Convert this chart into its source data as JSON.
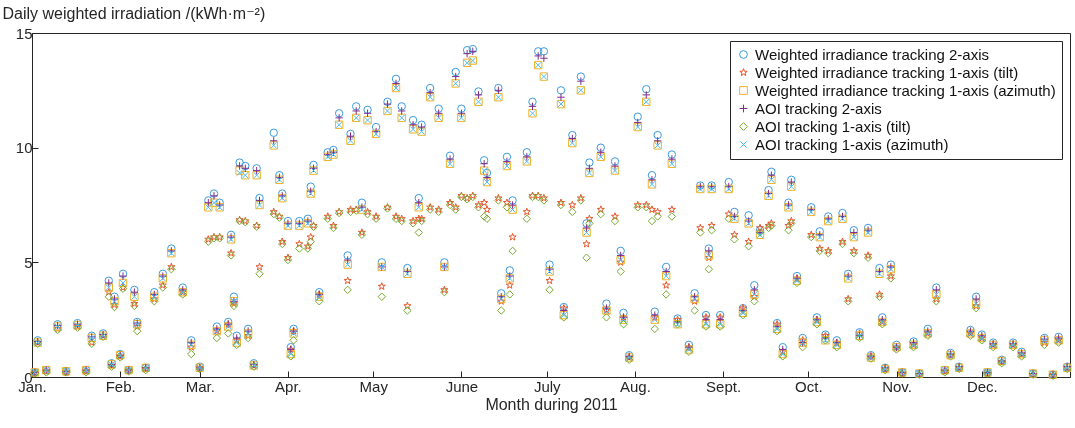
{
  "chart_data": {
    "type": "scatter",
    "xlabel": "Month during 2011",
    "ylabel": "Daily weighted irradiation /(kWh·m⁻²)",
    "xlim": [
      "2011-01-01",
      "2012-01-01"
    ],
    "xticks": [
      {
        "value": "2011-01-01",
        "label": "Jan."
      },
      {
        "value": "2011-02-01",
        "label": "Feb."
      },
      {
        "value": "2011-03-01",
        "label": "Mar."
      },
      {
        "value": "2011-04-01",
        "label": "Apr."
      },
      {
        "value": "2011-05-01",
        "label": "May"
      },
      {
        "value": "2011-06-01",
        "label": "June"
      },
      {
        "value": "2011-07-01",
        "label": "July"
      },
      {
        "value": "2011-08-01",
        "label": "Aug."
      },
      {
        "value": "2011-09-01",
        "label": "Sept."
      },
      {
        "value": "2011-10-01",
        "label": "Oct."
      },
      {
        "value": "2011-11-01",
        "label": "Nov."
      },
      {
        "value": "2011-12-01",
        "label": "Dec."
      }
    ],
    "ylim": [
      0,
      15
    ],
    "yticks": [
      0,
      5,
      10,
      15
    ],
    "grid": false,
    "legend": "top right",
    "x": [
      "2011-01-02",
      "2011-01-03",
      "2011-01-06",
      "2011-01-10",
      "2011-01-13",
      "2011-01-17",
      "2011-01-20",
      "2011-01-22",
      "2011-01-26",
      "2011-01-28",
      "2011-01-29",
      "2011-01-30",
      "2011-02-01",
      "2011-02-02",
      "2011-02-04",
      "2011-02-06",
      "2011-02-07",
      "2011-02-10",
      "2011-02-13",
      "2011-02-16",
      "2011-02-19",
      "2011-02-23",
      "2011-02-26",
      "2011-03-01",
      "2011-03-04",
      "2011-03-06",
      "2011-03-07",
      "2011-03-08",
      "2011-03-11",
      "2011-03-12",
      "2011-03-13",
      "2011-03-14",
      "2011-03-15",
      "2011-03-17",
      "2011-03-18",
      "2011-03-20",
      "2011-03-21",
      "2011-03-22",
      "2011-03-27",
      "2011-03-29",
      "2011-03-30",
      "2011-04-01",
      "2011-04-02",
      "2011-04-03",
      "2011-04-05",
      "2011-04-08",
      "2011-04-09",
      "2011-04-10",
      "2011-04-12",
      "2011-04-15",
      "2011-04-17",
      "2011-04-19",
      "2011-04-22",
      "2011-04-23",
      "2011-04-25",
      "2011-04-27",
      "2011-04-29",
      "2011-05-02",
      "2011-05-04",
      "2011-05-06",
      "2011-05-09",
      "2011-05-11",
      "2011-05-13",
      "2011-05-15",
      "2011-05-17",
      "2011-05-18",
      "2011-05-21",
      "2011-05-24",
      "2011-05-26",
      "2011-05-28",
      "2011-05-30",
      "2011-06-01",
      "2011-06-03",
      "2011-06-05",
      "2011-06-07",
      "2011-06-09",
      "2011-06-10",
      "2011-06-14",
      "2011-06-15",
      "2011-06-17",
      "2011-06-18",
      "2011-06-19",
      "2011-06-24",
      "2011-06-26",
      "2011-06-28",
      "2011-06-30",
      "2011-07-02",
      "2011-07-06",
      "2011-07-07",
      "2011-07-10",
      "2011-07-13",
      "2011-07-15",
      "2011-07-16",
      "2011-07-20",
      "2011-07-22",
      "2011-07-25",
      "2011-07-27",
      "2011-07-28",
      "2011-07-30",
      "2011-08-02",
      "2011-08-05",
      "2011-08-07",
      "2011-08-08",
      "2011-08-09",
      "2011-08-12",
      "2011-08-14",
      "2011-08-16",
      "2011-08-20",
      "2011-08-22",
      "2011-08-24",
      "2011-08-26",
      "2011-08-27",
      "2011-08-28",
      "2011-08-31",
      "2011-09-03",
      "2011-09-05",
      "2011-09-08",
      "2011-09-10",
      "2011-09-12",
      "2011-09-14",
      "2011-09-17",
      "2011-09-18",
      "2011-09-20",
      "2011-09-22",
      "2011-09-24",
      "2011-09-25",
      "2011-09-27",
      "2011-09-29",
      "2011-10-02",
      "2011-10-04",
      "2011-10-05",
      "2011-10-07",
      "2011-10-08",
      "2011-10-11",
      "2011-10-13",
      "2011-10-15",
      "2011-10-17",
      "2011-10-19",
      "2011-10-22",
      "2011-10-23",
      "2011-10-26",
      "2011-10-27",
      "2011-10-28",
      "2011-10-30",
      "2011-11-01",
      "2011-11-03",
      "2011-11-07",
      "2011-11-09",
      "2011-11-12",
      "2011-11-15",
      "2011-11-18",
      "2011-11-20",
      "2011-11-23",
      "2011-11-27",
      "2011-11-29",
      "2011-12-01",
      "2011-12-03",
      "2011-12-05",
      "2011-12-08",
      "2011-12-12",
      "2011-12-15",
      "2011-12-19",
      "2011-12-23",
      "2011-12-26",
      "2011-12-28",
      "2011-12-31"
    ],
    "series": [
      {
        "name": "Weighted irradiance tracking 2-axis",
        "color": "#3b9ade",
        "marker": "circle",
        "values": [
          0.2,
          1.6,
          0.3,
          2.3,
          0.25,
          2.35,
          0.3,
          1.8,
          1.9,
          4.2,
          0.6,
          3.5,
          1.0,
          4.5,
          0.3,
          3.8,
          2.4,
          0.4,
          3.7,
          4.5,
          5.6,
          3.9,
          1.6,
          0.45,
          7.7,
          8.0,
          2.2,
          7.6,
          2.4,
          6.2,
          3.5,
          1.8,
          9.35,
          9.2,
          2.1,
          0.6,
          9.1,
          7.8,
          10.65,
          8.8,
          8.0,
          6.8,
          1.3,
          2.1,
          6.8,
          6.9,
          8.3,
          9.25,
          3.7,
          9.8,
          9.9,
          11.5,
          5.3,
          10.6,
          11.8,
          7.6,
          11.65,
          10.9,
          5.0,
          12.0,
          13.0,
          11.8,
          4.75,
          11.2,
          7.8,
          11.0,
          12.6,
          11.7,
          5.0,
          9.65,
          13.3,
          11.7,
          14.25,
          14.3,
          12.45,
          9.45,
          8.9,
          12.6,
          3.65,
          9.6,
          4.65,
          7.7,
          9.8,
          12.0,
          14.2,
          14.2,
          4.9,
          12.5,
          3.05,
          10.55,
          13.1,
          6.7,
          9.35,
          10.0,
          3.2,
          9.4,
          5.5,
          2.8,
          0.95,
          11.35,
          12.55,
          8.8,
          2.85,
          10.55,
          4.8,
          9.7,
          2.55,
          1.4,
          3.65,
          8.35,
          2.7,
          5.6,
          8.35,
          2.7,
          8.5,
          7.2,
          3.0,
          7.05,
          4.0,
          6.4,
          8.15,
          8.95,
          2.35,
          1.3,
          7.6,
          8.6,
          4.4,
          1.7,
          7.4,
          2.6,
          6.35,
          1.85,
          7.0,
          1.6,
          7.15,
          4.5,
          6.4,
          1.95,
          6.5,
          0.95,
          4.75,
          2.6,
          0.4,
          4.9,
          1.4,
          0.2,
          1.55,
          0.15,
          2.1,
          3.9,
          0.3,
          1.05,
          0.45,
          2.05,
          3.5,
          1.85,
          0.2,
          1.5,
          0.75,
          1.5,
          1.1,
          0.15,
          1.7,
          0.1,
          1.75,
          0.45
        ]
      },
      {
        "name": "Weighted irradiance tracking 1-axis (tilt)",
        "color": "#e8562a",
        "marker": "star",
        "values": [
          0.2,
          1.5,
          0.25,
          2.1,
          0.2,
          2.2,
          0.25,
          1.5,
          1.8,
          3.7,
          0.5,
          3.15,
          0.9,
          3.9,
          0.3,
          3.2,
          2.2,
          0.35,
          3.4,
          4.0,
          4.8,
          3.7,
          1.3,
          0.4,
          6.0,
          6.1,
          2.0,
          6.1,
          2.3,
          5.4,
          3.2,
          1.6,
          6.85,
          6.8,
          1.8,
          0.5,
          6.6,
          4.8,
          7.2,
          7.0,
          5.9,
          5.2,
          1.2,
          2.0,
          5.8,
          5.7,
          6.1,
          6.6,
          3.6,
          7.0,
          6.6,
          7.2,
          4.2,
          7.3,
          7.3,
          6.3,
          7.2,
          7.0,
          3.95,
          7.4,
          7.0,
          6.9,
          3.1,
          6.8,
          6.9,
          6.9,
          7.4,
          7.3,
          3.8,
          7.6,
          7.4,
          7.9,
          7.8,
          7.9,
          7.5,
          7.6,
          7.3,
          7.8,
          3.3,
          7.6,
          4.0,
          6.1,
          7.2,
          7.9,
          7.9,
          7.8,
          4.2,
          7.6,
          3.0,
          7.5,
          7.8,
          5.8,
          6.9,
          7.3,
          2.9,
          7.0,
          5.0,
          2.6,
          0.85,
          7.5,
          7.5,
          7.3,
          2.6,
          7.2,
          4.0,
          7.3,
          2.5,
          1.3,
          3.3,
          6.5,
          2.6,
          5.2,
          6.6,
          2.6,
          7.1,
          6.2,
          3.0,
          5.9,
          3.5,
          6.5,
          6.6,
          6.7,
          2.3,
          1.1,
          6.6,
          6.8,
          4.3,
          1.6,
          6.2,
          2.5,
          5.6,
          1.8,
          5.5,
          1.5,
          5.9,
          3.4,
          5.5,
          1.9,
          5.3,
          0.9,
          3.6,
          2.4,
          0.35,
          4.4,
          1.3,
          0.15,
          1.4,
          0.1,
          1.9,
          3.4,
          0.25,
          0.95,
          0.4,
          1.9,
          3.1,
          1.7,
          0.15,
          1.4,
          0.65,
          1.4,
          1.0,
          0.1,
          1.5,
          0.1,
          1.6,
          0.4
        ]
      },
      {
        "name": "Weighted irradiance tracking 1-axis (azimuth)",
        "color": "#f0b429",
        "marker": "square",
        "values": [
          0.2,
          1.5,
          0.3,
          2.2,
          0.25,
          2.25,
          0.3,
          1.7,
          1.8,
          3.9,
          0.55,
          3.3,
          0.95,
          4.1,
          0.3,
          3.5,
          2.3,
          0.4,
          3.5,
          4.3,
          5.4,
          3.7,
          1.4,
          0.4,
          7.4,
          7.6,
          2.0,
          7.4,
          2.2,
          6.0,
          3.3,
          1.5,
          9.0,
          8.8,
          1.9,
          0.5,
          8.8,
          7.5,
          10.1,
          8.6,
          7.8,
          6.6,
          1.0,
          1.9,
          6.6,
          6.7,
          8.0,
          9.0,
          3.5,
          9.6,
          9.7,
          11.0,
          4.9,
          10.3,
          11.3,
          7.3,
          11.2,
          10.6,
          4.8,
          11.6,
          12.6,
          11.3,
          4.5,
          10.8,
          7.4,
          10.7,
          12.2,
          11.3,
          4.8,
          9.3,
          12.8,
          11.3,
          13.7,
          13.8,
          12.0,
          9.0,
          8.5,
          12.2,
          3.4,
          9.2,
          4.3,
          7.3,
          9.4,
          11.5,
          13.6,
          13.1,
          4.6,
          11.9,
          2.7,
          10.2,
          12.5,
          6.3,
          8.9,
          9.6,
          2.9,
          9.0,
          5.1,
          2.5,
          0.85,
          10.9,
          12.0,
          8.4,
          2.5,
          10.1,
          4.4,
          9.3,
          2.3,
          1.2,
          3.4,
          8.2,
          2.3,
          5.3,
          8.2,
          2.3,
          8.2,
          6.9,
          2.8,
          6.7,
          3.6,
          6.2,
          7.9,
          8.6,
          2.1,
          1.0,
          7.4,
          8.3,
          4.2,
          1.5,
          7.2,
          2.4,
          6.1,
          1.6,
          6.8,
          1.4,
          6.9,
          4.3,
          6.1,
          1.8,
          6.3,
          0.85,
          4.5,
          2.4,
          0.35,
          4.7,
          1.3,
          0.2,
          1.4,
          0.15,
          1.9,
          3.6,
          0.3,
          0.95,
          0.4,
          1.9,
          3.2,
          1.7,
          0.2,
          1.4,
          0.7,
          1.4,
          1.0,
          0.15,
          1.6,
          0.1,
          1.6,
          0.4
        ]
      },
      {
        "name": "AOI tracking 2-axis",
        "color": "#7e2f8e",
        "marker": "cross",
        "values": [
          0.2,
          1.55,
          0.3,
          2.25,
          0.25,
          2.3,
          0.3,
          1.75,
          1.85,
          4.1,
          0.55,
          3.4,
          0.95,
          4.4,
          0.3,
          3.7,
          2.35,
          0.4,
          3.6,
          4.4,
          5.5,
          3.8,
          1.5,
          0.4,
          7.6,
          7.9,
          2.1,
          7.5,
          2.3,
          6.1,
          3.3,
          1.7,
          9.2,
          9.1,
          2.0,
          0.55,
          9.0,
          7.7,
          10.3,
          8.7,
          7.9,
          6.7,
          1.2,
          2.0,
          6.7,
          6.8,
          8.1,
          9.1,
          3.6,
          9.7,
          9.8,
          11.3,
          5.1,
          10.5,
          11.6,
          7.4,
          11.5,
          10.7,
          4.8,
          11.9,
          12.8,
          11.6,
          4.6,
          11.0,
          7.6,
          10.9,
          12.4,
          11.5,
          4.8,
          9.5,
          13.1,
          11.5,
          14.1,
          14.2,
          12.3,
          9.3,
          8.7,
          12.5,
          3.5,
          9.4,
          4.4,
          7.5,
          9.6,
          11.8,
          14.0,
          13.9,
          4.7,
          12.2,
          2.9,
          10.4,
          12.9,
          6.5,
          9.1,
          9.8,
          3.0,
          9.2,
          5.3,
          2.6,
          0.9,
          11.1,
          12.3,
          8.6,
          2.7,
          10.3,
          4.6,
          9.5,
          2.4,
          1.3,
          3.5,
          8.3,
          2.5,
          5.5,
          8.3,
          2.5,
          8.3,
          7.0,
          2.9,
          6.8,
          3.8,
          6.3,
          8.0,
          8.8,
          2.2,
          1.2,
          7.5,
          8.5,
          4.3,
          1.5,
          7.3,
          2.5,
          6.2,
          1.7,
          6.9,
          1.5,
          7.0,
          4.4,
          6.3,
          1.8,
          6.4,
          0.9,
          4.6,
          2.5,
          0.4,
          4.8,
          1.3,
          0.2,
          1.5,
          0.15,
          2.0,
          3.8,
          0.3,
          1.0,
          0.45,
          2.0,
          3.4,
          1.8,
          0.2,
          1.45,
          0.7,
          1.45,
          1.05,
          0.15,
          1.65,
          0.1,
          1.7,
          0.45
        ]
      },
      {
        "name": "AOI tracking 1-axis (tilt)",
        "color": "#77ac30",
        "marker": "diamond",
        "values": [
          0.15,
          1.45,
          0.2,
          2.05,
          0.2,
          2.15,
          0.2,
          1.45,
          1.75,
          3.5,
          0.45,
          3.05,
          0.85,
          3.85,
          0.25,
          3.1,
          2.0,
          0.3,
          3.3,
          3.9,
          4.7,
          3.6,
          1.0,
          0.35,
          5.9,
          6.05,
          1.7,
          6.05,
          1.9,
          5.3,
          3.1,
          1.4,
          6.8,
          6.75,
          1.7,
          0.45,
          6.55,
          4.5,
          7.1,
          6.95,
          5.8,
          5.1,
          0.9,
          1.6,
          5.6,
          5.6,
          5.9,
          6.55,
          3.3,
          6.9,
          6.5,
          7.15,
          3.8,
          7.2,
          7.25,
          6.2,
          7.1,
          6.9,
          3.5,
          7.35,
          6.9,
          6.8,
          2.9,
          6.7,
          6.3,
          6.8,
          7.3,
          7.2,
          3.7,
          7.5,
          7.3,
          7.85,
          7.75,
          7.85,
          7.4,
          7.0,
          6.9,
          7.7,
          2.9,
          7.4,
          3.6,
          5.5,
          6.9,
          7.85,
          7.85,
          7.7,
          3.8,
          7.5,
          2.6,
          7.2,
          7.7,
          5.2,
          6.7,
          7.1,
          2.6,
          6.8,
          4.6,
          2.3,
          0.75,
          7.4,
          7.4,
          6.8,
          2.1,
          7.0,
          3.6,
          7.0,
          2.3,
          1.1,
          2.9,
          6.3,
          2.2,
          4.7,
          6.4,
          2.2,
          6.9,
          6.0,
          2.7,
          5.7,
          3.3,
          6.3,
          6.5,
          6.6,
          2.0,
          0.9,
          6.4,
          6.7,
          4.1,
          1.3,
          6.1,
          2.3,
          5.5,
          1.6,
          5.4,
          1.3,
          5.8,
          3.3,
          5.4,
          1.7,
          5.2,
          0.8,
          3.5,
          2.3,
          0.3,
          4.3,
          1.2,
          0.15,
          1.3,
          0.1,
          1.8,
          3.3,
          0.2,
          0.9,
          0.35,
          1.8,
          3.0,
          1.6,
          0.15,
          1.3,
          0.6,
          1.3,
          0.9,
          0.1,
          1.4,
          0.05,
          1.5,
          0.35
        ]
      },
      {
        "name": "AOI tracking 1-axis (azimuth)",
        "color": "#4dbeee",
        "marker": "x",
        "values": [
          0.2,
          1.5,
          0.3,
          2.2,
          0.25,
          2.25,
          0.3,
          1.7,
          1.8,
          3.9,
          0.55,
          3.3,
          0.95,
          4.1,
          0.3,
          3.5,
          2.3,
          0.4,
          3.5,
          4.3,
          5.4,
          3.7,
          1.4,
          0.4,
          7.4,
          7.6,
          2.0,
          7.4,
          2.2,
          6.0,
          3.3,
          1.5,
          8.9,
          8.8,
          1.9,
          0.5,
          8.8,
          7.5,
          10.1,
          8.6,
          7.8,
          6.6,
          1.0,
          1.9,
          6.6,
          6.7,
          8.0,
          9.0,
          3.5,
          9.6,
          9.7,
          11.0,
          4.9,
          10.3,
          11.3,
          7.3,
          11.2,
          10.6,
          4.8,
          11.6,
          12.6,
          11.3,
          4.5,
          10.8,
          7.4,
          10.7,
          12.2,
          11.3,
          4.8,
          9.3,
          12.8,
          11.3,
          13.7,
          13.8,
          12.0,
          9.0,
          8.5,
          12.2,
          3.4,
          9.2,
          4.3,
          7.3,
          9.4,
          11.5,
          13.6,
          13.1,
          4.6,
          11.9,
          2.7,
          10.2,
          12.5,
          6.3,
          8.9,
          9.6,
          2.9,
          9.0,
          5.1,
          2.5,
          0.85,
          10.9,
          12.0,
          8.4,
          2.5,
          10.1,
          4.4,
          9.3,
          2.3,
          1.2,
          3.4,
          8.2,
          2.3,
          5.3,
          8.2,
          2.3,
          8.2,
          6.9,
          2.8,
          6.7,
          3.6,
          6.2,
          7.9,
          8.6,
          2.1,
          1.0,
          7.4,
          8.3,
          4.2,
          1.5,
          7.2,
          2.4,
          6.1,
          1.6,
          6.8,
          1.4,
          6.9,
          4.3,
          6.1,
          1.8,
          6.3,
          0.85,
          4.5,
          2.4,
          0.35,
          4.7,
          1.3,
          0.2,
          1.4,
          0.15,
          1.9,
          3.6,
          0.3,
          0.95,
          0.4,
          1.9,
          3.2,
          1.7,
          0.2,
          1.4,
          0.7,
          1.4,
          1.0,
          0.15,
          1.6,
          0.1,
          1.6,
          0.4
        ]
      }
    ]
  }
}
